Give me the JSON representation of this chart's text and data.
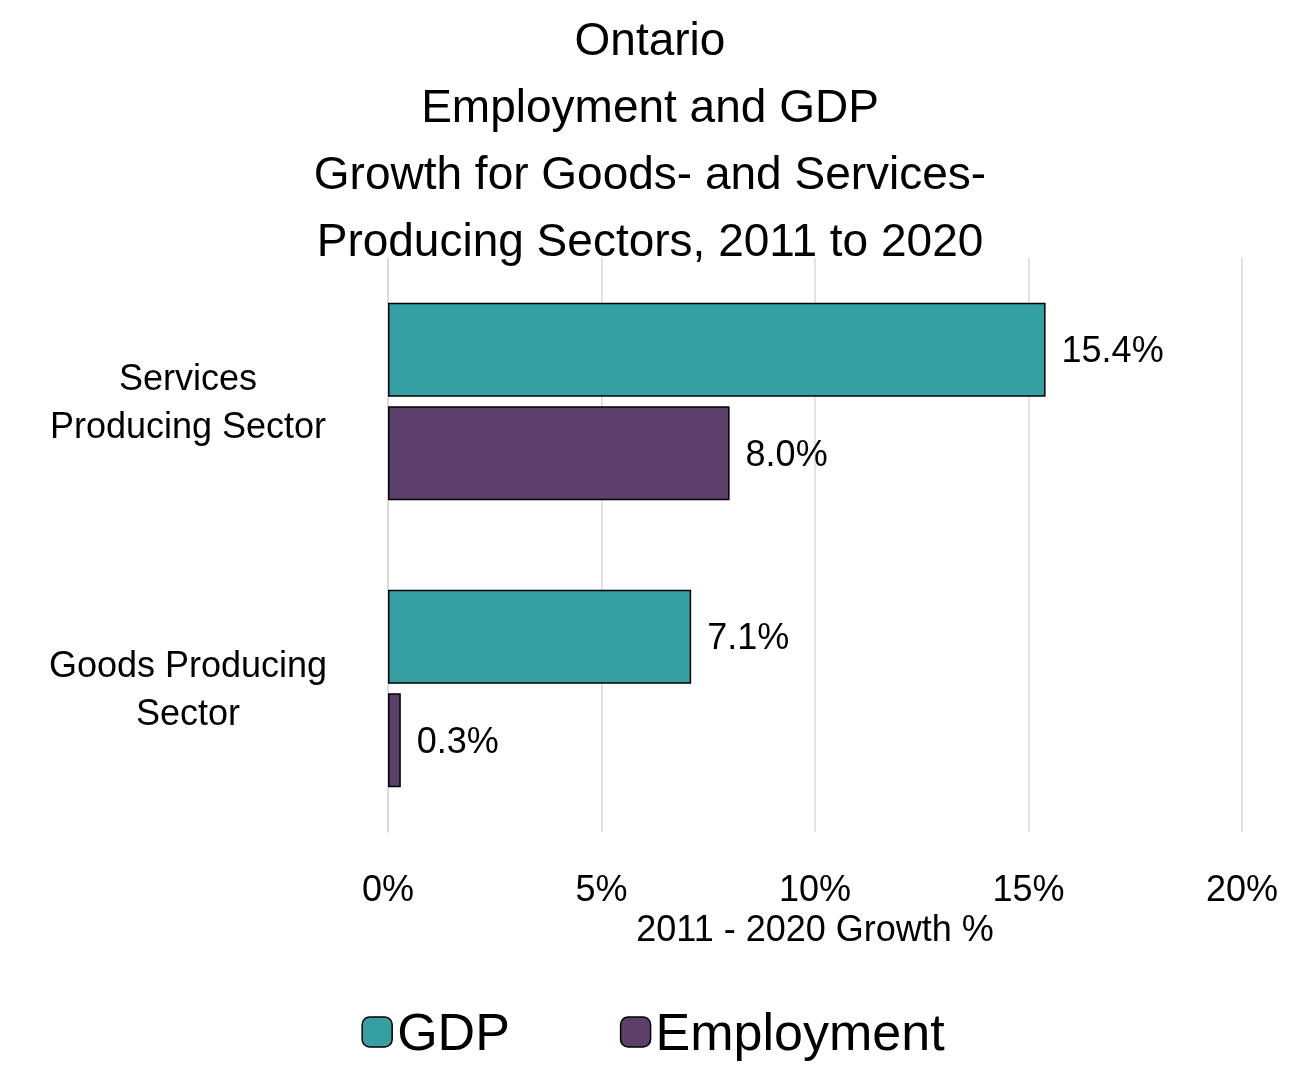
{
  "chart_data": {
    "type": "bar",
    "orientation": "horizontal",
    "title": "Ontario\nEmployment and GDP\nGrowth for Goods- and Services-\nProducing Sectors, 2011 to 2020",
    "xlabel": "2011 - 2020 Growth %",
    "categories": [
      "Services\nProducing Sector",
      "Goods Producing\nSector"
    ],
    "series": [
      {
        "name": "GDP",
        "color": "#35a0a4",
        "values": [
          15.4,
          7.1
        ],
        "value_labels": [
          "15.4%",
          "7.1%"
        ]
      },
      {
        "name": "Employment",
        "color": "#5c3f6b",
        "values": [
          8.0,
          0.3
        ],
        "value_labels": [
          "8.0%",
          "0.3%"
        ]
      }
    ],
    "xlim": [
      0,
      20
    ],
    "xticks": [
      {
        "value": 0,
        "label": "0%"
      },
      {
        "value": 5,
        "label": "5%"
      },
      {
        "value": 10,
        "label": "10%"
      },
      {
        "value": 15,
        "label": "15%"
      },
      {
        "value": 20,
        "label": "20%"
      }
    ],
    "grid": "x",
    "legend": "bottom"
  }
}
